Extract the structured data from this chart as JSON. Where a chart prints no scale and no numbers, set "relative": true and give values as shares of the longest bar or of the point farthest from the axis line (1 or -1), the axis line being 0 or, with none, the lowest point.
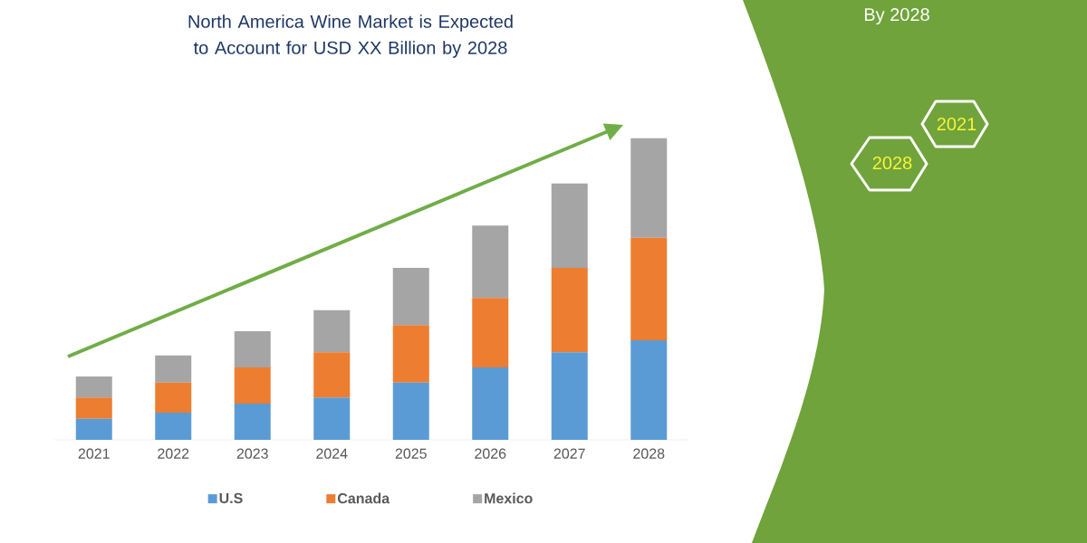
{
  "chart_data": {
    "type": "bar",
    "stacked": true,
    "relative": true,
    "title": "North America Wine Market is Expected to Account for USD XX Billion by 2028",
    "categories": [
      "2021",
      "2022",
      "2023",
      "2024",
      "2025",
      "2026",
      "2027",
      "2028"
    ],
    "series": [
      {
        "name": "U.S",
        "color": "#5b9bd5",
        "values": [
          0.07,
          0.09,
          0.12,
          0.14,
          0.19,
          0.24,
          0.29,
          0.33
        ]
      },
      {
        "name": "Canada",
        "color": "#ed7d31",
        "values": [
          0.07,
          0.1,
          0.12,
          0.15,
          0.19,
          0.23,
          0.28,
          0.34
        ]
      },
      {
        "name": "Mexico",
        "color": "#a5a5a5",
        "values": [
          0.07,
          0.09,
          0.12,
          0.14,
          0.19,
          0.24,
          0.28,
          0.33
        ]
      }
    ],
    "legend": "bottom",
    "annotations": [
      "By 2028",
      "2021",
      "2028"
    ]
  }
}
